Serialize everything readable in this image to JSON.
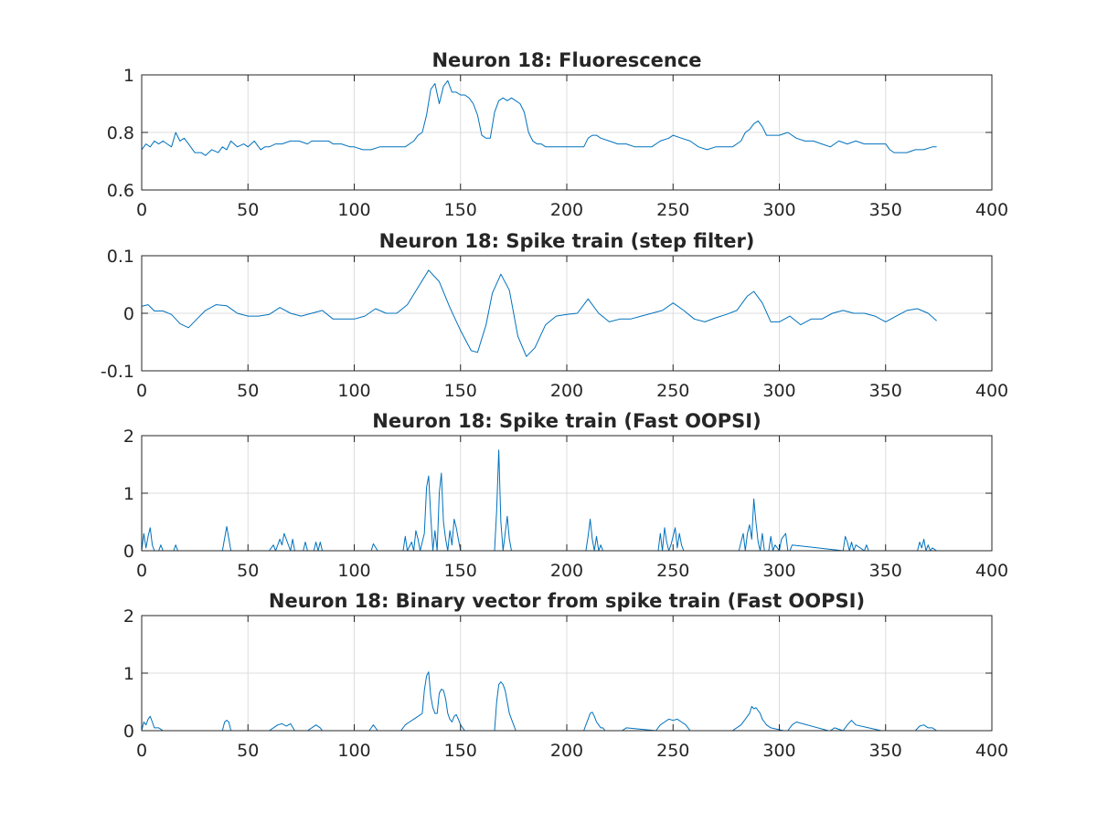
{
  "chart_data": [
    {
      "type": "line",
      "title": "Neuron 18: Fluorescence",
      "xlim": [
        0,
        400
      ],
      "ylim": [
        0.6,
        1
      ],
      "xticks": [
        0,
        50,
        100,
        150,
        200,
        250,
        300,
        350,
        400
      ],
      "xtick_labels": [
        "0",
        "50",
        "100",
        "150",
        "200",
        "250",
        "300",
        "350",
        "400"
      ],
      "yticks": [
        0.6,
        0.8,
        1
      ],
      "ytick_labels": [
        "0.6",
        "0.8",
        "1"
      ],
      "grid": true,
      "color": "#0072BD",
      "x": [
        0,
        2,
        4,
        6,
        8,
        10,
        12,
        14,
        16,
        18,
        20,
        22,
        25,
        28,
        30,
        33,
        36,
        38,
        40,
        42,
        45,
        48,
        50,
        53,
        56,
        58,
        60,
        63,
        66,
        70,
        74,
        78,
        80,
        84,
        88,
        90,
        94,
        98,
        100,
        104,
        108,
        112,
        116,
        120,
        124,
        128,
        130,
        132,
        134,
        136,
        138,
        140,
        142,
        144,
        146,
        148,
        150,
        152,
        154,
        156,
        158,
        160,
        162,
        164,
        166,
        168,
        170,
        172,
        174,
        176,
        178,
        180,
        182,
        184,
        186,
        188,
        190,
        194,
        198,
        202,
        206,
        208,
        210,
        212,
        214,
        216,
        220,
        224,
        228,
        232,
        236,
        240,
        244,
        248,
        250,
        254,
        258,
        262,
        266,
        270,
        274,
        278,
        282,
        284,
        286,
        288,
        290,
        292,
        294,
        296,
        298,
        300,
        304,
        308,
        312,
        316,
        320,
        324,
        328,
        332,
        336,
        340,
        344,
        348,
        350,
        352,
        354,
        356,
        360,
        364,
        368,
        372,
        374
      ],
      "y": [
        0.74,
        0.76,
        0.75,
        0.77,
        0.76,
        0.77,
        0.76,
        0.75,
        0.8,
        0.77,
        0.78,
        0.76,
        0.73,
        0.73,
        0.72,
        0.74,
        0.73,
        0.75,
        0.74,
        0.77,
        0.75,
        0.76,
        0.75,
        0.77,
        0.74,
        0.75,
        0.75,
        0.76,
        0.76,
        0.77,
        0.77,
        0.76,
        0.77,
        0.77,
        0.77,
        0.76,
        0.76,
        0.75,
        0.75,
        0.74,
        0.74,
        0.75,
        0.75,
        0.75,
        0.75,
        0.77,
        0.79,
        0.8,
        0.86,
        0.95,
        0.97,
        0.9,
        0.96,
        0.98,
        0.94,
        0.94,
        0.93,
        0.93,
        0.92,
        0.9,
        0.86,
        0.79,
        0.78,
        0.78,
        0.87,
        0.91,
        0.92,
        0.91,
        0.92,
        0.91,
        0.9,
        0.87,
        0.8,
        0.77,
        0.76,
        0.76,
        0.75,
        0.75,
        0.75,
        0.75,
        0.75,
        0.75,
        0.78,
        0.79,
        0.79,
        0.78,
        0.77,
        0.76,
        0.76,
        0.75,
        0.75,
        0.75,
        0.77,
        0.78,
        0.79,
        0.78,
        0.77,
        0.75,
        0.74,
        0.75,
        0.75,
        0.75,
        0.77,
        0.8,
        0.81,
        0.83,
        0.84,
        0.82,
        0.79,
        0.79,
        0.79,
        0.79,
        0.8,
        0.78,
        0.77,
        0.77,
        0.76,
        0.75,
        0.77,
        0.76,
        0.77,
        0.76,
        0.76,
        0.76,
        0.76,
        0.74,
        0.73,
        0.73,
        0.73,
        0.74,
        0.74,
        0.75,
        0.75
      ]
    },
    {
      "type": "line",
      "title": "Neuron 18: Spike train (step filter)",
      "xlim": [
        0,
        400
      ],
      "ylim": [
        -0.1,
        0.1
      ],
      "xticks": [
        0,
        50,
        100,
        150,
        200,
        250,
        300,
        350,
        400
      ],
      "xtick_labels": [
        "0",
        "50",
        "100",
        "150",
        "200",
        "250",
        "300",
        "350",
        "400"
      ],
      "yticks": [
        -0.1,
        0,
        0.1
      ],
      "ytick_labels": [
        "-0.1",
        "0",
        "0.1"
      ],
      "grid": true,
      "color": "#0072BD",
      "x": [
        0,
        3,
        6,
        10,
        14,
        18,
        22,
        26,
        30,
        35,
        40,
        45,
        50,
        55,
        60,
        65,
        70,
        75,
        80,
        85,
        90,
        95,
        100,
        105,
        110,
        115,
        120,
        125,
        130,
        135,
        140,
        145,
        150,
        155,
        158,
        162,
        165,
        169,
        173,
        177,
        181,
        185,
        190,
        195,
        200,
        205,
        210,
        215,
        220,
        225,
        230,
        235,
        240,
        245,
        250,
        255,
        260,
        265,
        270,
        275,
        280,
        285,
        288,
        292,
        296,
        300,
        305,
        310,
        315,
        320,
        325,
        330,
        335,
        340,
        345,
        350,
        355,
        360,
        365,
        370,
        374
      ],
      "y": [
        0.012,
        0.015,
        0.004,
        0.004,
        -0.002,
        -0.018,
        -0.025,
        -0.01,
        0.005,
        0.015,
        0.013,
        0.0,
        -0.005,
        -0.005,
        -0.002,
        0.01,
        0.0,
        -0.005,
        0.0,
        0.005,
        -0.01,
        -0.01,
        -0.01,
        -0.005,
        0.008,
        0.0,
        0.0,
        0.015,
        0.045,
        0.075,
        0.055,
        0.01,
        -0.03,
        -0.065,
        -0.068,
        -0.02,
        0.035,
        0.068,
        0.04,
        -0.04,
        -0.075,
        -0.06,
        -0.02,
        -0.005,
        -0.002,
        0.0,
        0.025,
        0.0,
        -0.015,
        -0.01,
        -0.01,
        -0.005,
        0.0,
        0.005,
        0.018,
        0.005,
        -0.01,
        -0.015,
        -0.008,
        -0.002,
        0.005,
        0.03,
        0.038,
        0.018,
        -0.015,
        -0.015,
        -0.005,
        -0.02,
        -0.01,
        -0.01,
        0.0,
        0.005,
        0.0,
        0.0,
        -0.005,
        -0.015,
        -0.005,
        0.005,
        0.008,
        0.0,
        -0.013
      ]
    },
    {
      "type": "line",
      "title": "Neuron 18: Spike train (Fast OOPSI)",
      "xlim": [
        0,
        400
      ],
      "ylim": [
        0,
        2
      ],
      "xticks": [
        0,
        50,
        100,
        150,
        200,
        250,
        300,
        350,
        400
      ],
      "xtick_labels": [
        "0",
        "50",
        "100",
        "150",
        "200",
        "250",
        "300",
        "350",
        "400"
      ],
      "yticks": [
        0,
        1,
        2
      ],
      "ytick_labels": [
        "0",
        "1",
        "2"
      ],
      "grid": true,
      "color": "#0072BD",
      "x": [
        0,
        1,
        2,
        3,
        4,
        5,
        6,
        8,
        9,
        10,
        15,
        16,
        17,
        38,
        40,
        42,
        60,
        62,
        63,
        65,
        66,
        67,
        70,
        71,
        72,
        76,
        77,
        78,
        81,
        82,
        83,
        84,
        85,
        108,
        109,
        111,
        123,
        124,
        125,
        127,
        128,
        129,
        130,
        131,
        133,
        134,
        135,
        136,
        137,
        138,
        139,
        140,
        141,
        142,
        143,
        144,
        145,
        146,
        147,
        148,
        149,
        150,
        151,
        166,
        167,
        168,
        169,
        170,
        171,
        172,
        173,
        174,
        175,
        209,
        210,
        211,
        212,
        213,
        214,
        215,
        216,
        217,
        243,
        244,
        245,
        246,
        247,
        248,
        249,
        250,
        251,
        252,
        253,
        254,
        255,
        281,
        282,
        283,
        284,
        285,
        286,
        287,
        288,
        289,
        290,
        291,
        292,
        293,
        295,
        296,
        297,
        298,
        300,
        301,
        303,
        304,
        305,
        306,
        330,
        331,
        332,
        333,
        334,
        335,
        336,
        340,
        341,
        342,
        365,
        366,
        367,
        368,
        369,
        370,
        371,
        372,
        374
      ],
      "y": [
        0,
        0.3,
        0.05,
        0.25,
        0.4,
        0.1,
        0,
        0,
        0.1,
        0,
        0,
        0.1,
        0,
        0,
        0.42,
        0,
        0,
        0.1,
        0,
        0.2,
        0.1,
        0.3,
        0,
        0.2,
        0,
        0,
        0.15,
        0,
        0,
        0.15,
        0,
        0.15,
        0,
        0,
        0.12,
        0,
        0,
        0.25,
        0,
        0.15,
        0,
        0.35,
        0.2,
        0,
        0.3,
        1.1,
        1.3,
        0.6,
        0,
        0.35,
        0,
        1.0,
        1.35,
        0.5,
        0.2,
        0,
        0.35,
        0.1,
        0.55,
        0.4,
        0.2,
        0,
        0,
        0,
        0.7,
        1.75,
        0.5,
        0,
        0.3,
        0.6,
        0.2,
        0,
        0,
        0,
        0.25,
        0.55,
        0.2,
        0,
        0.25,
        0,
        0.1,
        0,
        0,
        0.3,
        0,
        0.4,
        0.15,
        0,
        0.1,
        0.25,
        0.4,
        0.05,
        0.3,
        0.1,
        0,
        0,
        0.15,
        0.3,
        0,
        0.3,
        0.45,
        0.2,
        0.9,
        0.5,
        0.15,
        0,
        0.3,
        0,
        0,
        0.25,
        0,
        0.1,
        0,
        0.2,
        0.3,
        0,
        0,
        0.1,
        0,
        0.25,
        0.15,
        0,
        0.15,
        0,
        0.1,
        0,
        0.1,
        0,
        0,
        0.15,
        0.05,
        0.2,
        0,
        0.1,
        0,
        0.05,
        0
      ]
    },
    {
      "type": "line",
      "title": "Neuron 18: Binary vector from spike train (Fast OOPSI)",
      "xlim": [
        0,
        400
      ],
      "ylim": [
        0,
        2
      ],
      "xticks": [
        0,
        50,
        100,
        150,
        200,
        250,
        300,
        350,
        400
      ],
      "xtick_labels": [
        "0",
        "50",
        "100",
        "150",
        "200",
        "250",
        "300",
        "350",
        "400"
      ],
      "yticks": [
        0,
        1,
        2
      ],
      "ytick_labels": [
        "0",
        "1",
        "2"
      ],
      "grid": true,
      "color": "#0072BD",
      "x": [
        0,
        1,
        2,
        3,
        4,
        5,
        6,
        8,
        10,
        15,
        17,
        38,
        39,
        40,
        41,
        42,
        60,
        62,
        64,
        66,
        68,
        70,
        72,
        78,
        80,
        82,
        84,
        85,
        107,
        109,
        111,
        122,
        124,
        126,
        128,
        130,
        132,
        133,
        134,
        135,
        136,
        137,
        138,
        139,
        140,
        141,
        142,
        143,
        144,
        145,
        146,
        147,
        148,
        149,
        150,
        151,
        152,
        166,
        167,
        168,
        169,
        170,
        171,
        172,
        173,
        174,
        175,
        176,
        208,
        209,
        210,
        211,
        212,
        213,
        214,
        215,
        216,
        217,
        218,
        226,
        228,
        242,
        244,
        246,
        248,
        250,
        252,
        254,
        256,
        258,
        278,
        282,
        284,
        286,
        287,
        288,
        289,
        290,
        291,
        292,
        293,
        294,
        296,
        302,
        304,
        306,
        308,
        323,
        324,
        326,
        330,
        332,
        334,
        336,
        342,
        348,
        350,
        364,
        366,
        368,
        370,
        372,
        374
      ],
      "y": [
        0,
        0.15,
        0.1,
        0.2,
        0.25,
        0.15,
        0.05,
        0.05,
        0,
        0,
        0,
        0,
        0.15,
        0.18,
        0.15,
        0,
        0,
        0.05,
        0.1,
        0.12,
        0.08,
        0.12,
        0,
        0,
        0.05,
        0.1,
        0.05,
        0,
        0,
        0.1,
        0,
        0,
        0.1,
        0.15,
        0.2,
        0.25,
        0.3,
        0.7,
        0.95,
        1.02,
        0.6,
        0.4,
        0.3,
        0.3,
        0.65,
        0.72,
        0.7,
        0.55,
        0.3,
        0.2,
        0.15,
        0.25,
        0.28,
        0.2,
        0.1,
        0.05,
        0,
        0,
        0.5,
        0.8,
        0.85,
        0.8,
        0.7,
        0.5,
        0.3,
        0.2,
        0.1,
        0,
        0,
        0.1,
        0.2,
        0.3,
        0.32,
        0.25,
        0.15,
        0.1,
        0.05,
        0.05,
        0,
        0,
        0.05,
        0,
        0.1,
        0.15,
        0.2,
        0.18,
        0.2,
        0.15,
        0.1,
        0,
        0,
        0.1,
        0.2,
        0.3,
        0.42,
        0.38,
        0.4,
        0.35,
        0.3,
        0.2,
        0.15,
        0.1,
        0.05,
        0,
        0,
        0.1,
        0.15,
        0,
        0,
        0.05,
        0,
        0.1,
        0.18,
        0.1,
        0.05,
        0,
        0,
        0,
        0.08,
        0.1,
        0.05,
        0.05,
        0
      ]
    }
  ]
}
